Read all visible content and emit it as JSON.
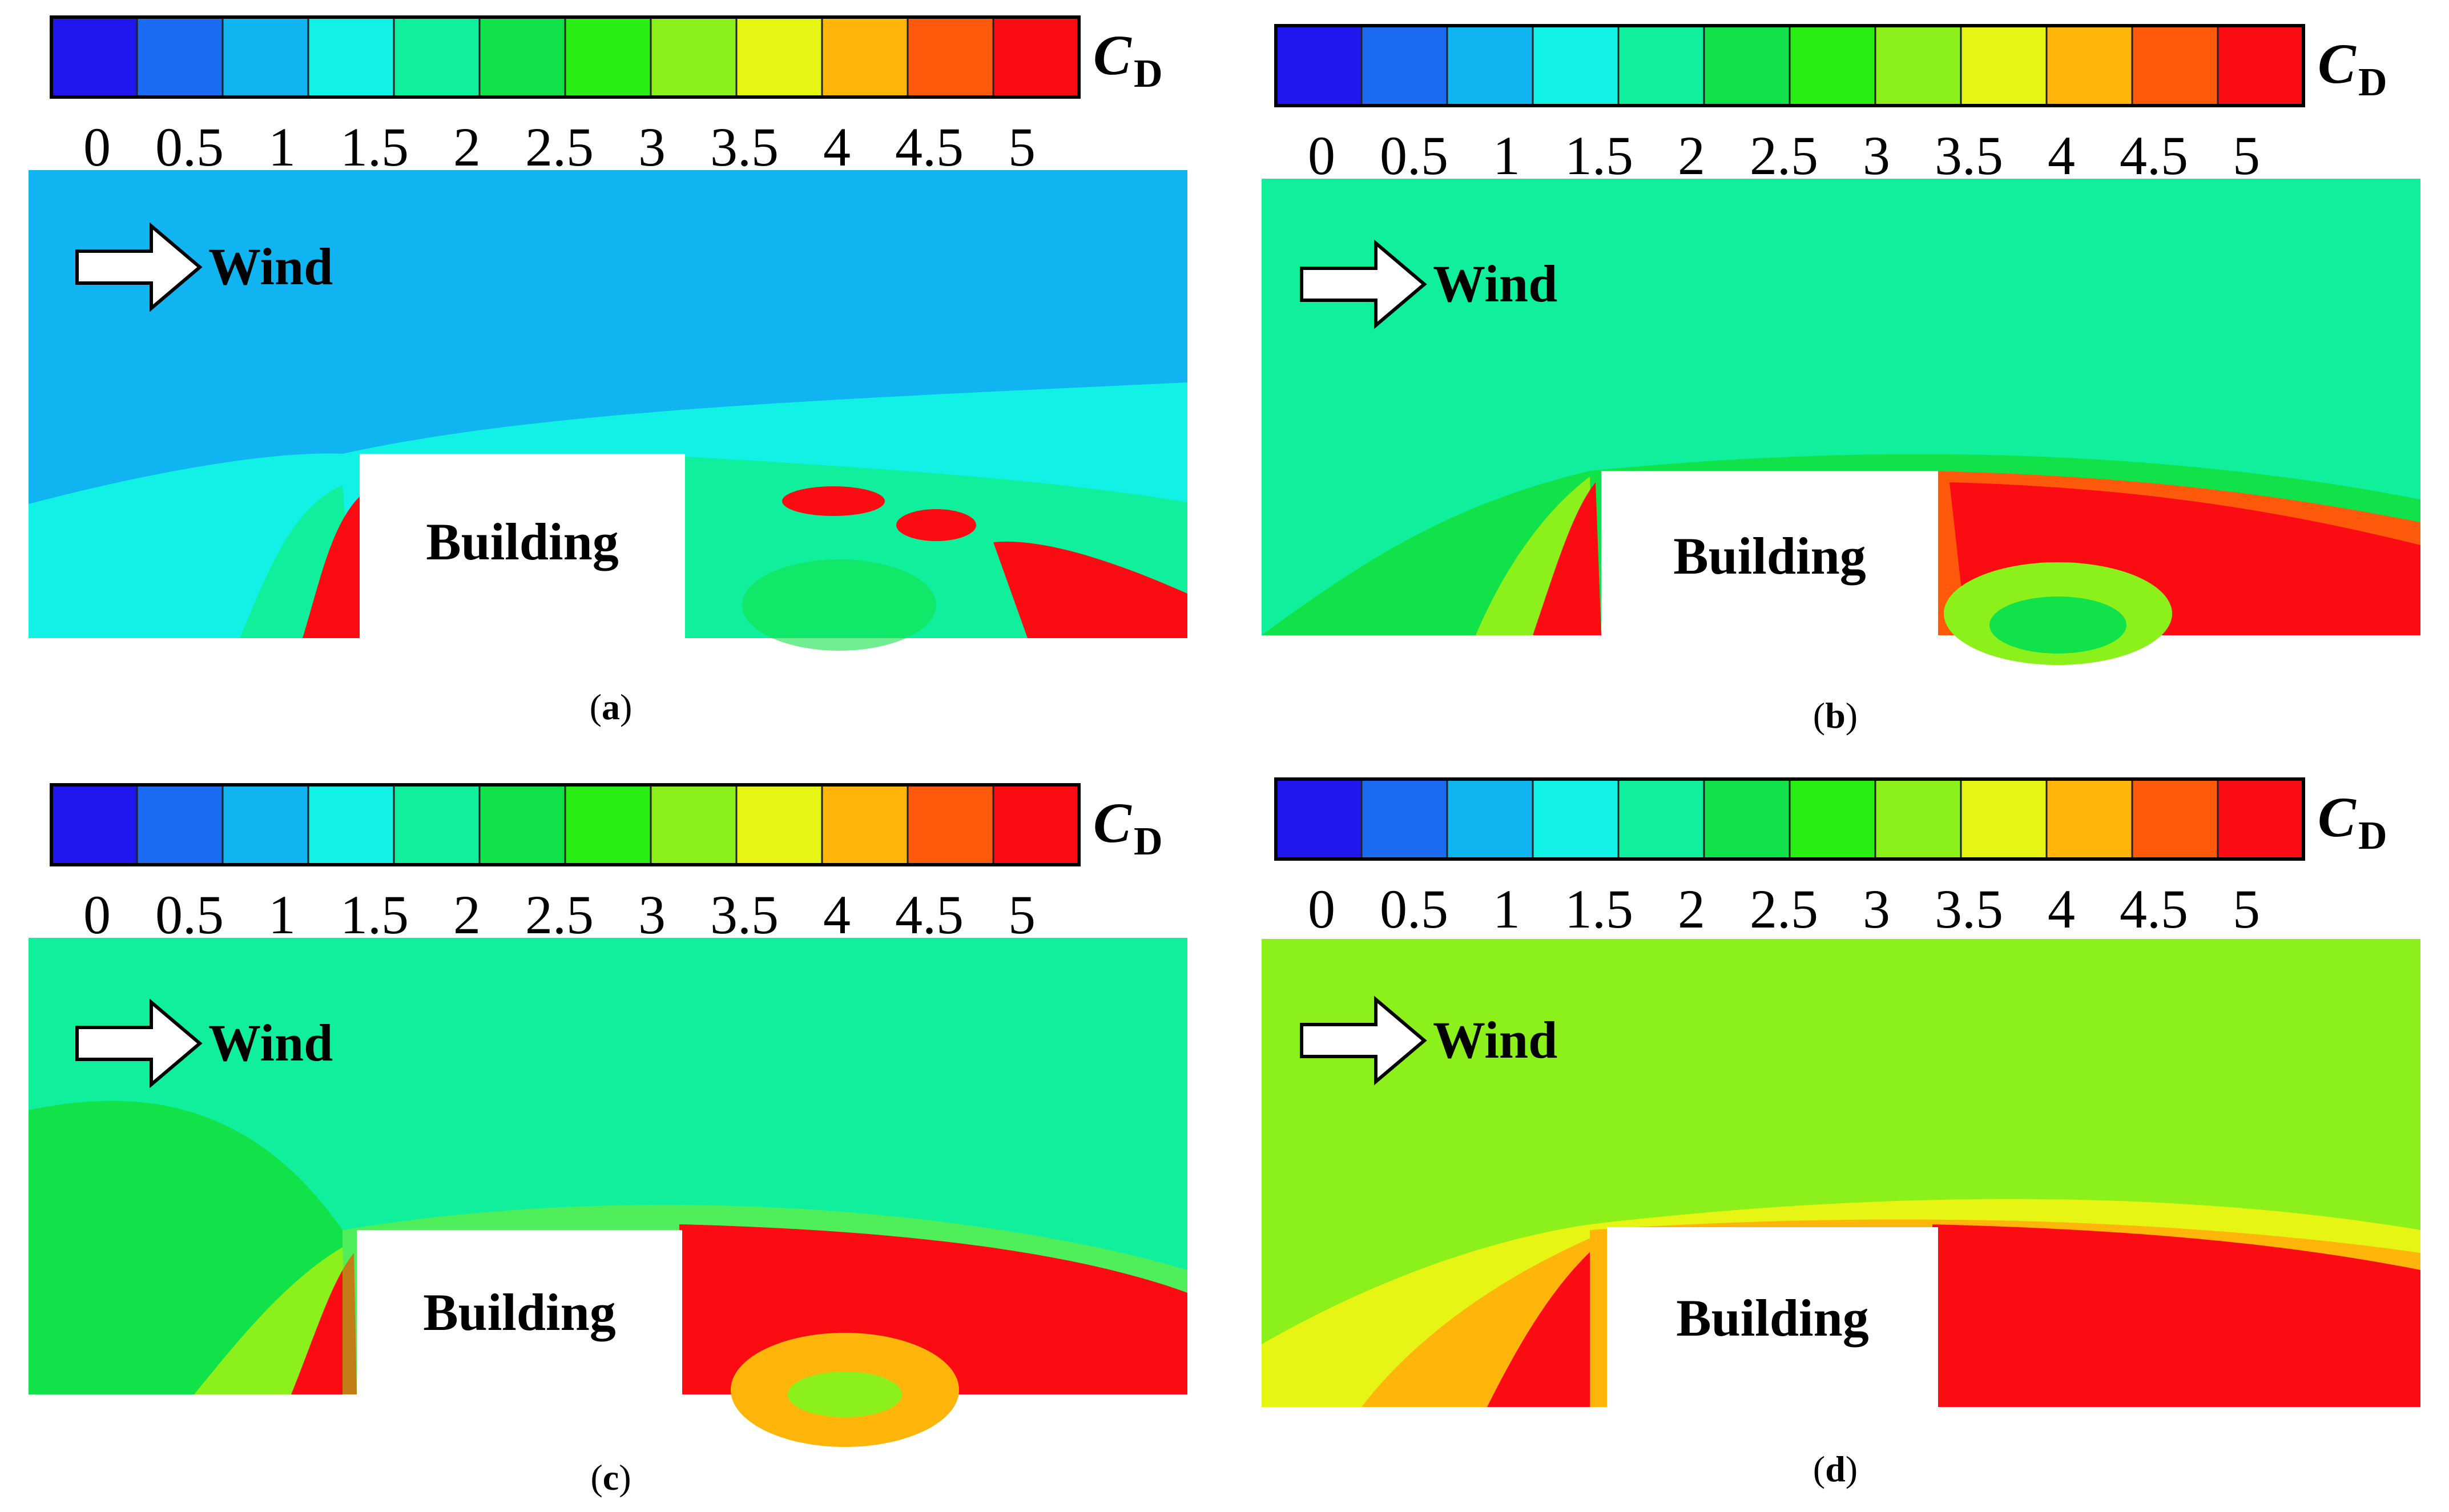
{
  "figure": {
    "colorbar": {
      "variable": "C",
      "subscript": "D",
      "ticks": [
        "0",
        "0.5",
        "1",
        "1.5",
        "2",
        "2.5",
        "3",
        "3.5",
        "4",
        "4.5",
        "5"
      ],
      "levels": [
        0,
        0.5,
        1,
        1.5,
        2,
        2.5,
        3,
        3.5,
        4,
        4.5,
        5
      ],
      "colors": [
        "#1f17ee",
        "#1b6cf2",
        "#10b4f0",
        "#12f1e6",
        "#10ef9c",
        "#12e24a",
        "#28ee14",
        "#8cf01a",
        "#e6f514",
        "#ffb50a",
        "#ff5a0c",
        "#fb0b12"
      ]
    },
    "wind_label": "Wind",
    "building_label": "Building",
    "panels": [
      {
        "label": "(a)",
        "caption": "a",
        "background_level": 1.0
      },
      {
        "label": "(b)",
        "caption": "b",
        "background_level": 2.0
      },
      {
        "label": "(c)",
        "caption": "c",
        "background_level": 2.0
      },
      {
        "label": "(d)",
        "caption": "d",
        "background_level": 3.5
      }
    ]
  },
  "chart_data": [
    {
      "type": "heatmap",
      "title": "",
      "quantity": "C_D",
      "colorbar_range": [
        0,
        5
      ],
      "contour_interval": 0.5,
      "freestream_CD": 1.0,
      "max_CD_near_building": 5.0
    },
    {
      "type": "heatmap",
      "title": "",
      "quantity": "C_D",
      "colorbar_range": [
        0,
        5
      ],
      "contour_interval": 0.5,
      "freestream_CD": 2.0,
      "max_CD_near_building": 5.0
    },
    {
      "type": "heatmap",
      "title": "",
      "quantity": "C_D",
      "colorbar_range": [
        0,
        5
      ],
      "contour_interval": 0.5,
      "freestream_CD": 2.0,
      "max_CD_near_building": 5.0
    },
    {
      "type": "heatmap",
      "title": "",
      "quantity": "C_D",
      "colorbar_range": [
        0,
        5
      ],
      "contour_interval": 0.5,
      "freestream_CD": 3.5,
      "max_CD_near_building": 5.0
    }
  ]
}
